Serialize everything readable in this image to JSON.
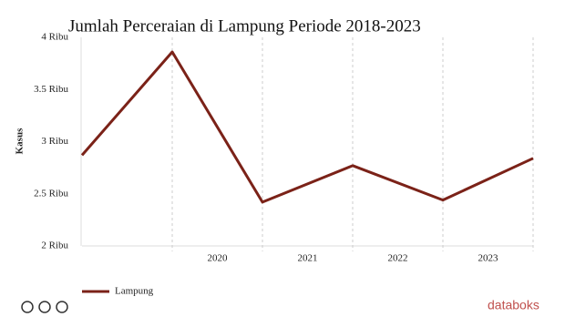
{
  "chart_data": {
    "type": "line",
    "title": "Jumlah Perceraian di Lampung Periode 2018-2023",
    "y_label": "Kasus",
    "categories": [
      null,
      null,
      "2020",
      "2021",
      "2022",
      "2023"
    ],
    "series": [
      {
        "name": "Lampung",
        "color": "#7b2218",
        "values": [
          2.87,
          3.86,
          2.42,
          2.77,
          2.44,
          2.84
        ]
      }
    ],
    "ylim": [
      2,
      4
    ],
    "yticks": [
      {
        "value": 2,
        "label": "2 Ribu"
      },
      {
        "value": 2.5,
        "label": "2.5 Ribu"
      },
      {
        "value": 3,
        "label": "3 Ribu"
      },
      {
        "value": 3.5,
        "label": "3.5 Ribu"
      },
      {
        "value": 4,
        "label": "4 Ribu"
      }
    ],
    "grid": true,
    "legend": "bottom-left"
  },
  "brand": "databoks"
}
